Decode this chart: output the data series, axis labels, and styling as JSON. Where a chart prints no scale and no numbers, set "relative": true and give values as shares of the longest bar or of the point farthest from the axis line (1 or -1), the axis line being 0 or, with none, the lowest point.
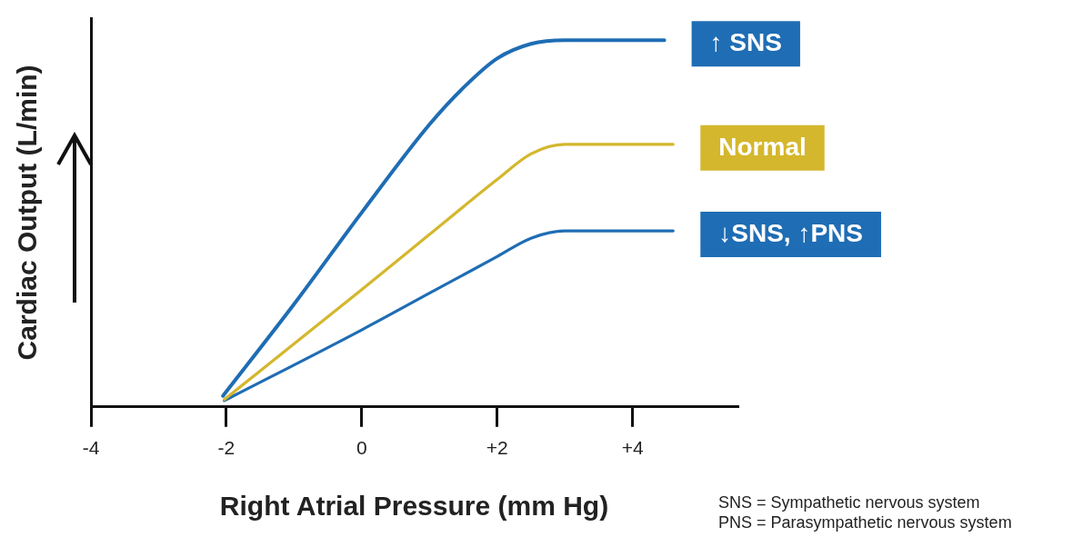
{
  "chart_data": {
    "type": "line",
    "xlabel": "Right Atrial Pressure (mm Hg)",
    "ylabel": "Cardiac Output (L/min)",
    "relative": true,
    "xlim": [
      -4,
      5.55
    ],
    "xticks": [
      -4,
      -2,
      0,
      {
        "value": 2,
        "label": "+2"
      },
      {
        "value": 4,
        "label": "+4"
      }
    ],
    "series": [
      {
        "name": "↑ SNS",
        "color": "#1f6db4",
        "x": [
          -2.05,
          -1,
          0,
          1,
          1.5,
          2,
          2.5,
          3,
          4.47
        ],
        "values": [
          0.03,
          0.28,
          0.53,
          0.77,
          0.87,
          0.95,
          0.99,
          1,
          1
        ]
      },
      {
        "name": "Normal",
        "color": "#d4b72c",
        "x": [
          -2.03,
          0,
          1,
          2,
          2.5,
          3,
          4.6
        ],
        "values": [
          0.02,
          0.32,
          0.47,
          0.62,
          0.69,
          0.716,
          0.716
        ]
      },
      {
        "name": "↓SNS, ↑PNS",
        "color": "#1f6db4",
        "x": [
          -2.03,
          0,
          1,
          2,
          2.5,
          3,
          4.6
        ],
        "values": [
          0.017,
          0.21,
          0.31,
          0.41,
          0.46,
          0.48,
          0.48
        ]
      }
    ],
    "legend": false,
    "grid": false,
    "marker": "none",
    "line_style": "solid",
    "annotations": [
      "SNS = Sympathetic nervous system",
      "PNS = Parasympathetic nervous system"
    ]
  }
}
